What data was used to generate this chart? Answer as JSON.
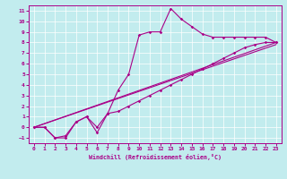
{
  "xlabel": "Windchill (Refroidissement éolien,°C)",
  "xlim": [
    -0.5,
    23.5
  ],
  "ylim": [
    -1.5,
    11.5
  ],
  "xticks": [
    0,
    1,
    2,
    3,
    4,
    5,
    6,
    7,
    8,
    9,
    10,
    11,
    12,
    13,
    14,
    15,
    16,
    17,
    18,
    19,
    20,
    21,
    22,
    23
  ],
  "yticks": [
    -1,
    0,
    1,
    2,
    3,
    4,
    5,
    6,
    7,
    8,
    9,
    10,
    11
  ],
  "bg_color": "#c2ecee",
  "line_color": "#aa0088",
  "grid_color": "#ffffff",
  "curve1_x": [
    0,
    1,
    2,
    3,
    4,
    5,
    6,
    7,
    8,
    9,
    10,
    11,
    12,
    13,
    14,
    15,
    16,
    17,
    18,
    19,
    20,
    21,
    22,
    23
  ],
  "curve1_y": [
    0,
    0,
    -1,
    -1,
    0.5,
    1,
    0,
    1.3,
    3.5,
    5,
    8.7,
    9,
    9,
    11.2,
    10.2,
    9.5,
    8.8,
    8.5,
    8.5,
    8.5,
    8.5,
    8.5,
    8.5,
    8.0
  ],
  "curve2_x": [
    0,
    1,
    2,
    3,
    4,
    5,
    6,
    7,
    8,
    9,
    10,
    11,
    12,
    13,
    14,
    15,
    16,
    17,
    18,
    19,
    20,
    21,
    22,
    23
  ],
  "curve2_y": [
    0,
    0,
    -1,
    -0.8,
    0.5,
    1.0,
    -0.5,
    1.3,
    1.5,
    2.0,
    2.5,
    3.0,
    3.5,
    4.0,
    4.5,
    5.0,
    5.5,
    6.0,
    6.5,
    7.0,
    7.5,
    7.8,
    8.0,
    8.0
  ],
  "line1_x": [
    0,
    23
  ],
  "line1_y": [
    0,
    8.0
  ],
  "line2_x": [
    0,
    23
  ],
  "line2_y": [
    0,
    7.8
  ]
}
